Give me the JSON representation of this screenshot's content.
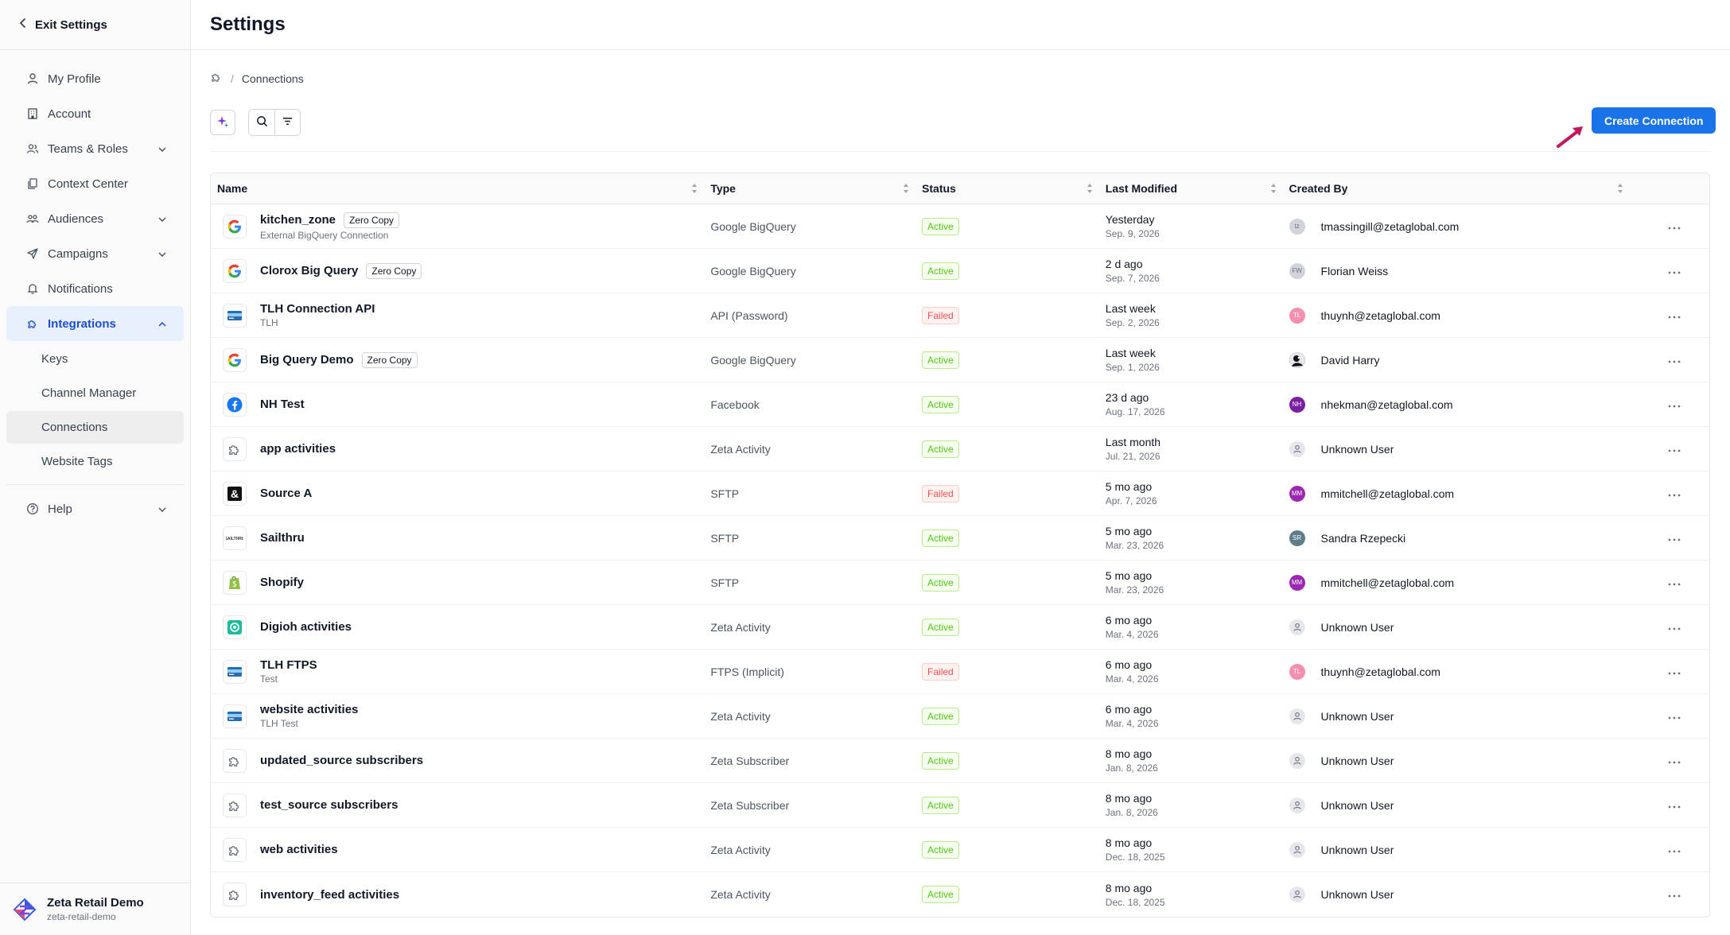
{
  "sidebar": {
    "exit_label": "Exit Settings",
    "items": [
      {
        "label": "My Profile"
      },
      {
        "label": "Account"
      },
      {
        "label": "Teams & Roles"
      },
      {
        "label": "Context Center"
      },
      {
        "label": "Audiences"
      },
      {
        "label": "Campaigns"
      },
      {
        "label": "Notifications"
      },
      {
        "label": "Integrations"
      },
      {
        "label": "Help"
      }
    ],
    "integrations_sub": [
      {
        "label": "Keys"
      },
      {
        "label": "Channel Manager"
      },
      {
        "label": "Connections"
      },
      {
        "label": "Website Tags"
      }
    ],
    "org": {
      "name": "Zeta Retail Demo",
      "slug": "zeta-retail-demo"
    }
  },
  "header": {
    "title": "Settings"
  },
  "breadcrumb": {
    "sep": "/",
    "current": "Connections"
  },
  "toolbar": {
    "create_label": "Create Connection"
  },
  "table": {
    "columns": [
      "Name",
      "Type",
      "Status",
      "Last Modified",
      "Created By"
    ],
    "rows": [
      {
        "icon": "google-icon",
        "name": "kitchen_zone",
        "tag": "Zero Copy",
        "sub": "External BigQuery Connection",
        "type": "Google BigQuery",
        "status": "Active",
        "mod_rel": "Yesterday",
        "mod_date": "Sep. 9, 2026",
        "avatar_initials": "tz",
        "avatar_color": "#d1d5db",
        "by": "tmassingill@zetaglobal.com"
      },
      {
        "icon": "google-icon",
        "name": "Clorox Big Query",
        "tag": "Zero Copy",
        "sub": "",
        "type": "Google BigQuery",
        "status": "Active",
        "mod_rel": "2 d ago",
        "mod_date": "Sep. 7, 2026",
        "avatar_initials": "FW",
        "avatar_color": "#d1d5db",
        "by": "Florian Weiss"
      },
      {
        "icon": "card-icon",
        "name": "TLH Connection API",
        "tag": "",
        "sub": "TLH",
        "type": "API (Password)",
        "status": "Failed",
        "mod_rel": "Last week",
        "mod_date": "Sep. 2, 2026",
        "avatar_initials": "TL",
        "avatar_color": "#f48fb1",
        "by": "thuynh@zetaglobal.com"
      },
      {
        "icon": "google-icon",
        "name": "Big Query Demo",
        "tag": "Zero Copy",
        "sub": "",
        "type": "Google BigQuery",
        "status": "Active",
        "mod_rel": "Last week",
        "mod_date": "Sep. 1, 2026",
        "avatar_initials": "",
        "avatar_color": "#111111",
        "by": "David Harry"
      },
      {
        "icon": "facebook-icon",
        "name": "NH Test",
        "tag": "",
        "sub": "",
        "type": "Facebook",
        "status": "Active",
        "mod_rel": "23 d ago",
        "mod_date": "Aug. 17, 2026",
        "avatar_initials": "NH",
        "avatar_color": "#7b1fa2",
        "by": "nhekman@zetaglobal.com"
      },
      {
        "icon": "puzzle-icon",
        "name": "app activities",
        "tag": "",
        "sub": "",
        "type": "Zeta Activity",
        "status": "Active",
        "mod_rel": "Last month",
        "mod_date": "Jul. 21, 2026",
        "avatar_initials": "",
        "avatar_color": "#d1d5db",
        "by": "Unknown User"
      },
      {
        "icon": "ampersand-icon",
        "name": "Source A",
        "tag": "",
        "sub": "",
        "type": "SFTP",
        "status": "Failed",
        "mod_rel": "5 mo ago",
        "mod_date": "Apr. 7, 2026",
        "avatar_initials": "MM",
        "avatar_color": "#9c27b0",
        "by": "mmitchell@zetaglobal.com"
      },
      {
        "icon": "sailthru-icon",
        "name": "Sailthru",
        "tag": "",
        "sub": "",
        "type": "SFTP",
        "status": "Active",
        "mod_rel": "5 mo ago",
        "mod_date": "Mar. 23, 2026",
        "avatar_initials": "SR",
        "avatar_color": "#607d8b",
        "by": "Sandra Rzepecki"
      },
      {
        "icon": "shopify-icon",
        "name": "Shopify",
        "tag": "",
        "sub": "",
        "type": "SFTP",
        "status": "Active",
        "mod_rel": "5 mo ago",
        "mod_date": "Mar. 23, 2026",
        "avatar_initials": "MM",
        "avatar_color": "#9c27b0",
        "by": "mmitchell@zetaglobal.com"
      },
      {
        "icon": "digioh-icon",
        "name": "Digioh activities",
        "tag": "",
        "sub": "",
        "type": "Zeta Activity",
        "status": "Active",
        "mod_rel": "6 mo ago",
        "mod_date": "Mar. 4, 2026",
        "avatar_initials": "",
        "avatar_color": "#d1d5db",
        "by": "Unknown User"
      },
      {
        "icon": "card-icon",
        "name": "TLH FTPS",
        "tag": "",
        "sub": "Test",
        "type": "FTPS (Implicit)",
        "status": "Failed",
        "mod_rel": "6 mo ago",
        "mod_date": "Mar. 4, 2026",
        "avatar_initials": "TL",
        "avatar_color": "#f48fb1",
        "by": "thuynh@zetaglobal.com"
      },
      {
        "icon": "card-icon",
        "name": "website activities",
        "tag": "",
        "sub": "TLH Test",
        "type": "Zeta Activity",
        "status": "Active",
        "mod_rel": "6 mo ago",
        "mod_date": "Mar. 4, 2026",
        "avatar_initials": "",
        "avatar_color": "#d1d5db",
        "by": "Unknown User"
      },
      {
        "icon": "puzzle-icon",
        "name": "updated_source subscribers",
        "tag": "",
        "sub": "",
        "type": "Zeta Subscriber",
        "status": "Active",
        "mod_rel": "8 mo ago",
        "mod_date": "Jan. 8, 2026",
        "avatar_initials": "",
        "avatar_color": "#d1d5db",
        "by": "Unknown User"
      },
      {
        "icon": "puzzle-icon",
        "name": "test_source subscribers",
        "tag": "",
        "sub": "",
        "type": "Zeta Subscriber",
        "status": "Active",
        "mod_rel": "8 mo ago",
        "mod_date": "Jan. 8, 2026",
        "avatar_initials": "",
        "avatar_color": "#d1d5db",
        "by": "Unknown User"
      },
      {
        "icon": "puzzle-icon",
        "name": "web activities",
        "tag": "",
        "sub": "",
        "type": "Zeta Activity",
        "status": "Active",
        "mod_rel": "8 mo ago",
        "mod_date": "Dec. 18, 2025",
        "avatar_initials": "",
        "avatar_color": "#d1d5db",
        "by": "Unknown User"
      },
      {
        "icon": "puzzle-icon",
        "name": "inventory_feed activities",
        "tag": "",
        "sub": "",
        "type": "Zeta Activity",
        "status": "Active",
        "mod_rel": "8 mo ago",
        "mod_date": "Dec. 18, 2025",
        "avatar_initials": "",
        "avatar_color": "#d1d5db",
        "by": "Unknown User"
      }
    ]
  },
  "colors": {
    "accent": "#1a73e8",
    "active": "#52c41a",
    "failed": "#ff4d4f"
  }
}
